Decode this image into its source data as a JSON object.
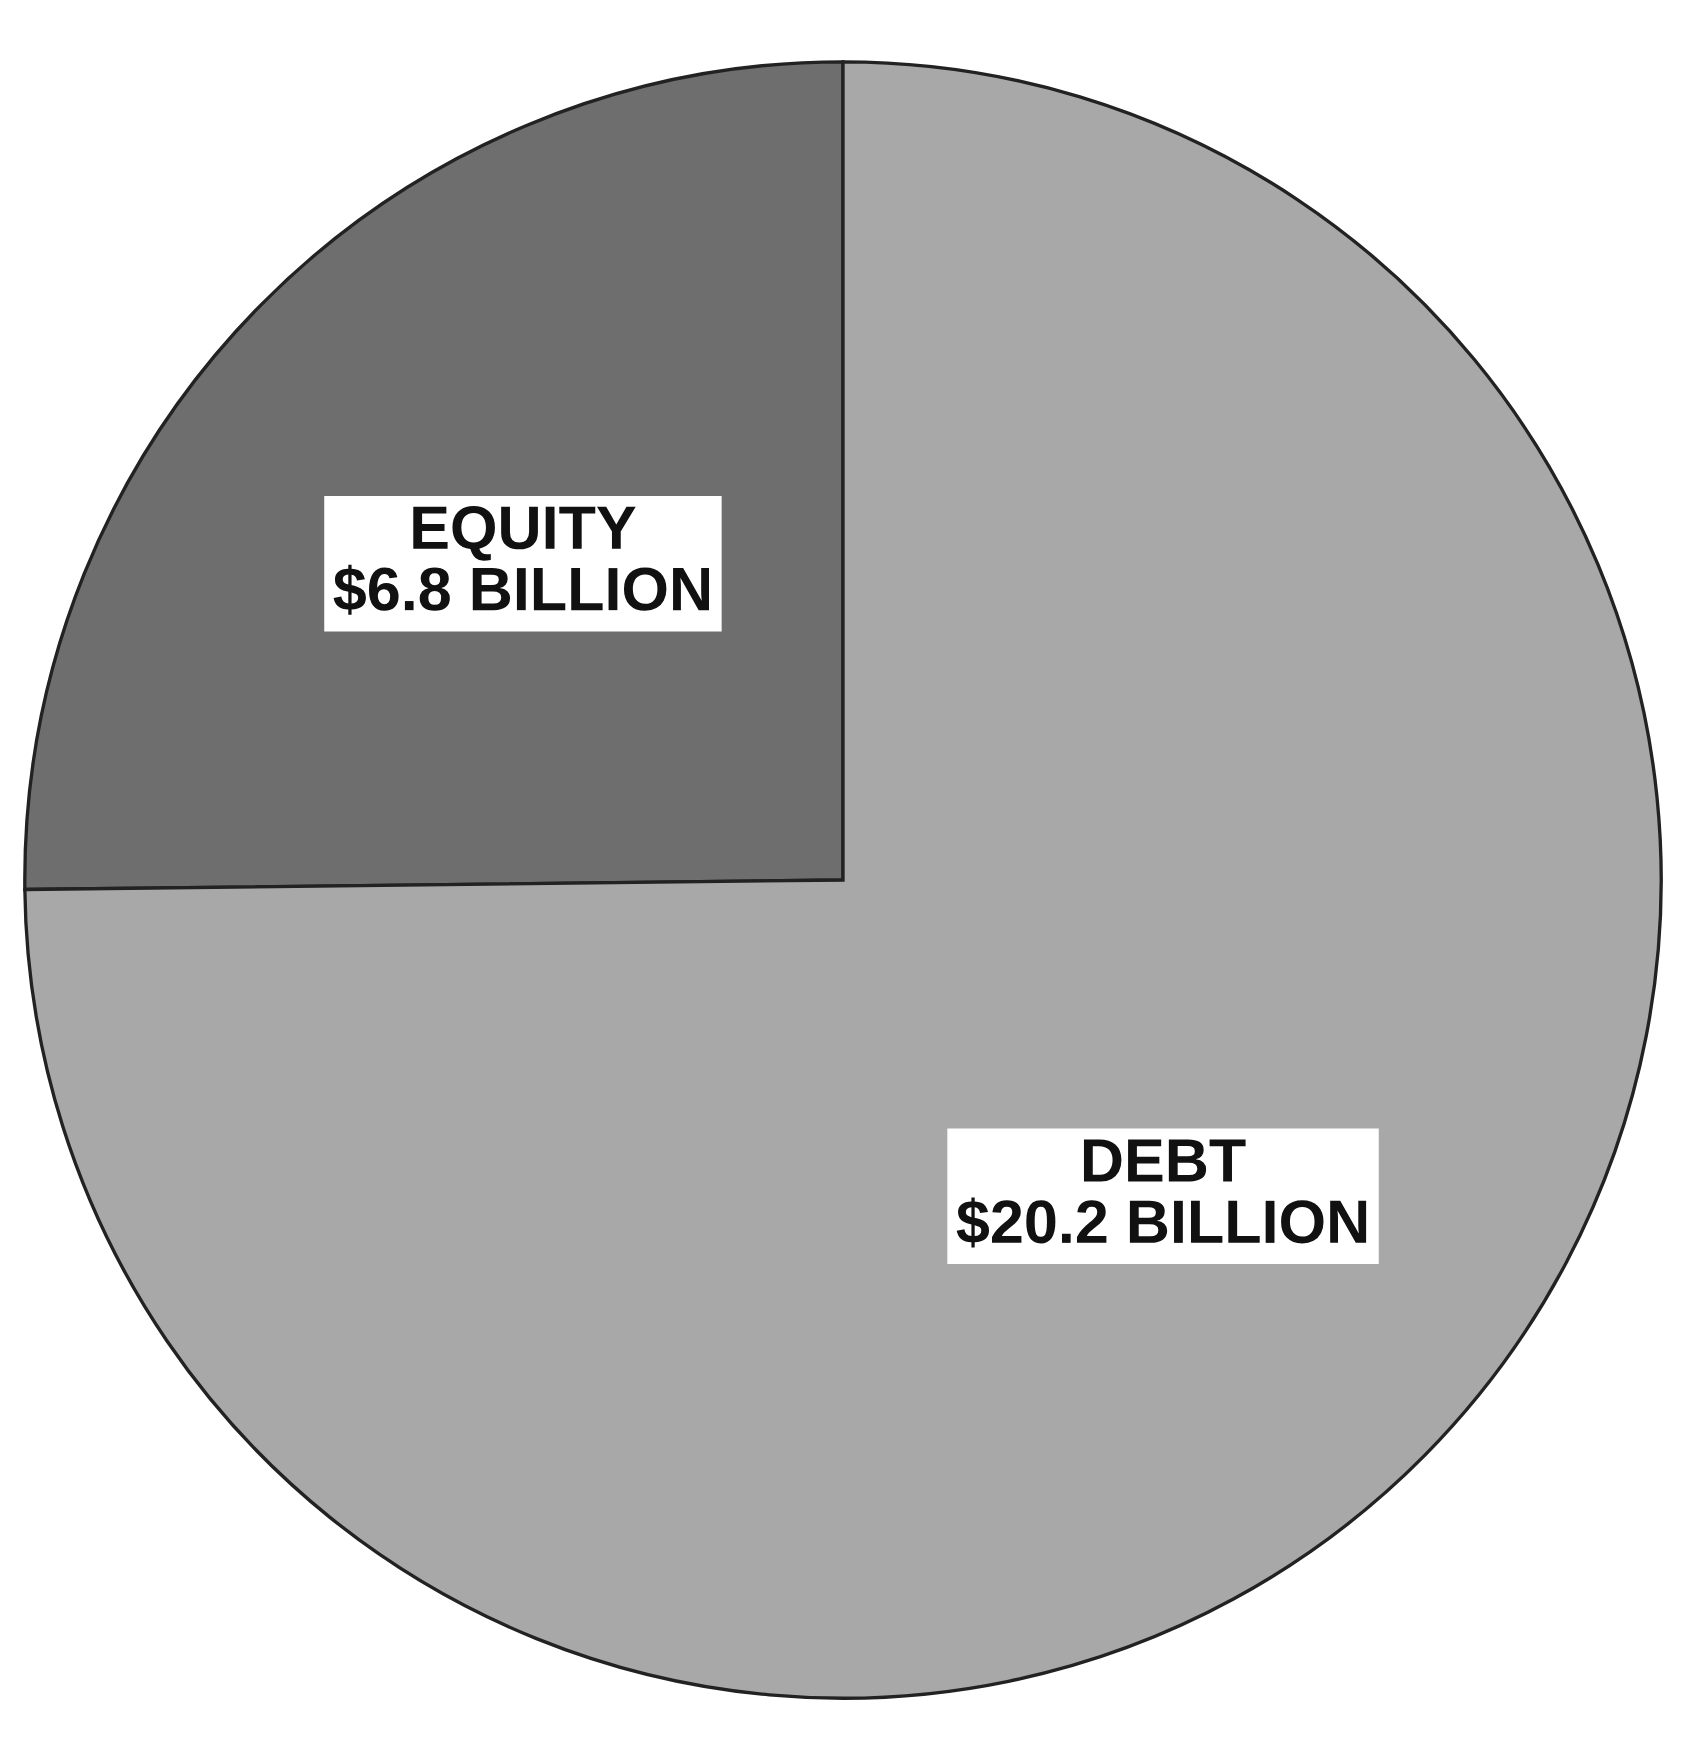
{
  "chart_data": {
    "type": "pie",
    "categories": [
      "EQUITY",
      "DEBT"
    ],
    "values": [
      6.8,
      20.2
    ],
    "value_labels": [
      "$6.8 BILLION",
      "$20.2 BILLION"
    ],
    "colors": [
      "#6e6e6e",
      "#a8a8a8"
    ],
    "legend": false
  }
}
